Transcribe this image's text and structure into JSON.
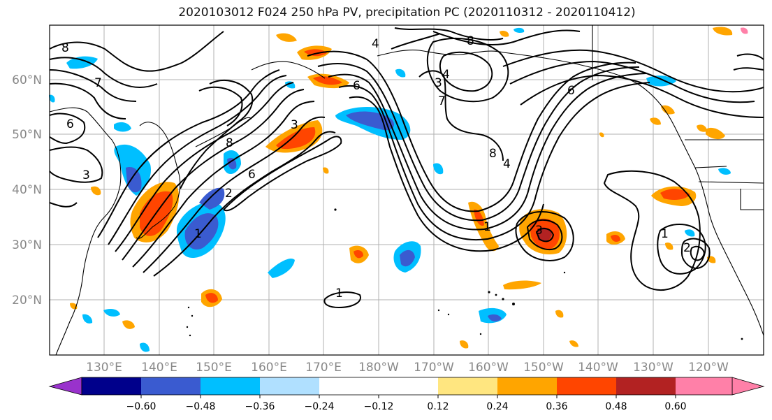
{
  "title": "2020103012 F024 250 hPa PV, precipitation PC (2020110312 - 2020110412)",
  "map": {
    "lat_labels": [
      "60°N",
      "50°N",
      "40°N",
      "30°N",
      "20°N"
    ],
    "lon_labels": [
      "130°E",
      "140°E",
      "150°E",
      "160°E",
      "170°E",
      "180°W",
      "170°W",
      "160°W",
      "150°W",
      "140°W",
      "130°W",
      "120°W"
    ],
    "contour_labels": [
      "8",
      "7",
      "6",
      "3",
      "8",
      "6",
      "1",
      "2",
      "3",
      "6",
      "4",
      "3",
      "7",
      "4",
      "6",
      "8",
      "4",
      "1",
      "3",
      "1",
      "2",
      "1",
      "8"
    ]
  },
  "colorbar": {
    "ticks": [
      "−0.60",
      "−0.48",
      "−0.36",
      "−0.24",
      "−0.12",
      "0.12",
      "0.24",
      "0.36",
      "0.48",
      "0.60"
    ],
    "colors": [
      "#9932cc",
      "#00008b",
      "#3a5bd0",
      "#00bfff",
      "#b0e0ff",
      "#ffffff",
      "#ffe680",
      "#ffa500",
      "#ff4500",
      "#b22222",
      "#ff80a8"
    ]
  }
}
